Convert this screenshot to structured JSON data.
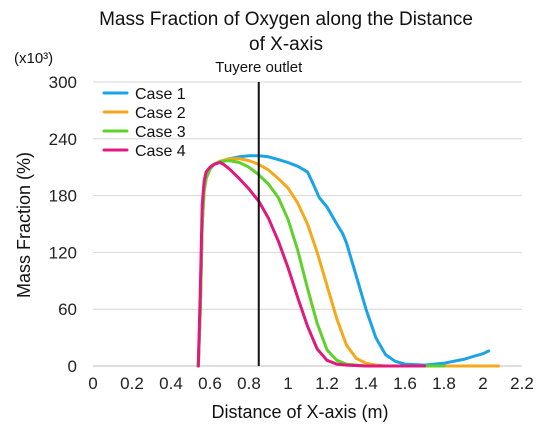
{
  "chart_data": {
    "type": "line",
    "title_line1": "Mass Fraction of Oxygen along the Distance",
    "title_line2": "of X-axis",
    "xlabel": "Distance of X-axis (m)",
    "ylabel": "Mass Fraction (%)",
    "y_multiplier": "(x10³)",
    "xlim": [
      0,
      2.2
    ],
    "ylim": [
      0,
      300
    ],
    "x_ticks": [
      "0",
      "0.2",
      "0.4",
      "0.6",
      "0.8",
      "1",
      "1.2",
      "1.4",
      "1.6",
      "1.8",
      "2",
      "2.2"
    ],
    "y_ticks": [
      "0",
      "60",
      "120",
      "180",
      "240",
      "300"
    ],
    "grid": "horizontal",
    "legend_position": "top-left",
    "annotations": [
      {
        "text": "Tuyere outlet",
        "x": 0.85
      }
    ],
    "series": [
      {
        "name": "Case 1",
        "color": "#1aa3e8",
        "x": [
          0.54,
          0.55,
          0.56,
          0.57,
          0.58,
          0.6,
          0.62,
          0.65,
          0.7,
          0.75,
          0.8,
          0.85,
          0.9,
          0.95,
          1.0,
          1.05,
          1.1,
          1.13,
          1.16,
          1.2,
          1.25,
          1.28,
          1.3,
          1.35,
          1.4,
          1.45,
          1.5,
          1.55,
          1.6,
          1.7,
          1.8,
          1.9,
          1.95,
          2.0,
          2.03
        ],
        "values": [
          0,
          60,
          150,
          185,
          198,
          208,
          213,
          216,
          219,
          221,
          222,
          222,
          221,
          218,
          215,
          211,
          205,
          192,
          178,
          168,
          150,
          140,
          130,
          95,
          60,
          30,
          12,
          5,
          2,
          1,
          3,
          7,
          10,
          13,
          16
        ]
      },
      {
        "name": "Case 2",
        "color": "#f5a91a",
        "x": [
          0.54,
          0.55,
          0.56,
          0.57,
          0.58,
          0.6,
          0.62,
          0.65,
          0.7,
          0.75,
          0.8,
          0.85,
          0.9,
          0.95,
          1.0,
          1.05,
          1.1,
          1.15,
          1.2,
          1.25,
          1.3,
          1.35,
          1.4,
          1.45,
          1.5,
          1.6,
          1.7,
          1.8,
          1.9,
          2.0,
          2.08
        ],
        "values": [
          0,
          60,
          150,
          185,
          198,
          208,
          213,
          216,
          219,
          219,
          217,
          213,
          207,
          198,
          188,
          172,
          150,
          120,
          85,
          50,
          22,
          8,
          3,
          1,
          0,
          0,
          0,
          0,
          0,
          0,
          0
        ]
      },
      {
        "name": "Case 3",
        "color": "#5fd12a",
        "x": [
          0.54,
          0.55,
          0.56,
          0.57,
          0.58,
          0.6,
          0.62,
          0.65,
          0.7,
          0.75,
          0.8,
          0.85,
          0.9,
          0.95,
          1.0,
          1.05,
          1.1,
          1.15,
          1.2,
          1.25,
          1.3,
          1.35,
          1.4,
          1.5,
          1.6,
          1.7,
          1.8
        ],
        "values": [
          0,
          60,
          150,
          185,
          198,
          208,
          213,
          216,
          217,
          215,
          210,
          202,
          192,
          178,
          155,
          122,
          82,
          45,
          17,
          6,
          2,
          1,
          0,
          0,
          0,
          0,
          0
        ]
      },
      {
        "name": "Case 4",
        "color": "#e0197d",
        "x": [
          0.54,
          0.55,
          0.56,
          0.57,
          0.58,
          0.6,
          0.62,
          0.65,
          0.67,
          0.7,
          0.75,
          0.8,
          0.85,
          0.9,
          0.95,
          1.0,
          1.05,
          1.1,
          1.15,
          1.2,
          1.25,
          1.3,
          1.4,
          1.5,
          1.6,
          1.7
        ],
        "values": [
          0,
          80,
          170,
          195,
          205,
          210,
          213,
          215,
          213,
          208,
          198,
          187,
          174,
          156,
          132,
          104,
          72,
          42,
          18,
          6,
          2,
          1,
          0,
          0,
          0,
          0
        ]
      }
    ]
  }
}
